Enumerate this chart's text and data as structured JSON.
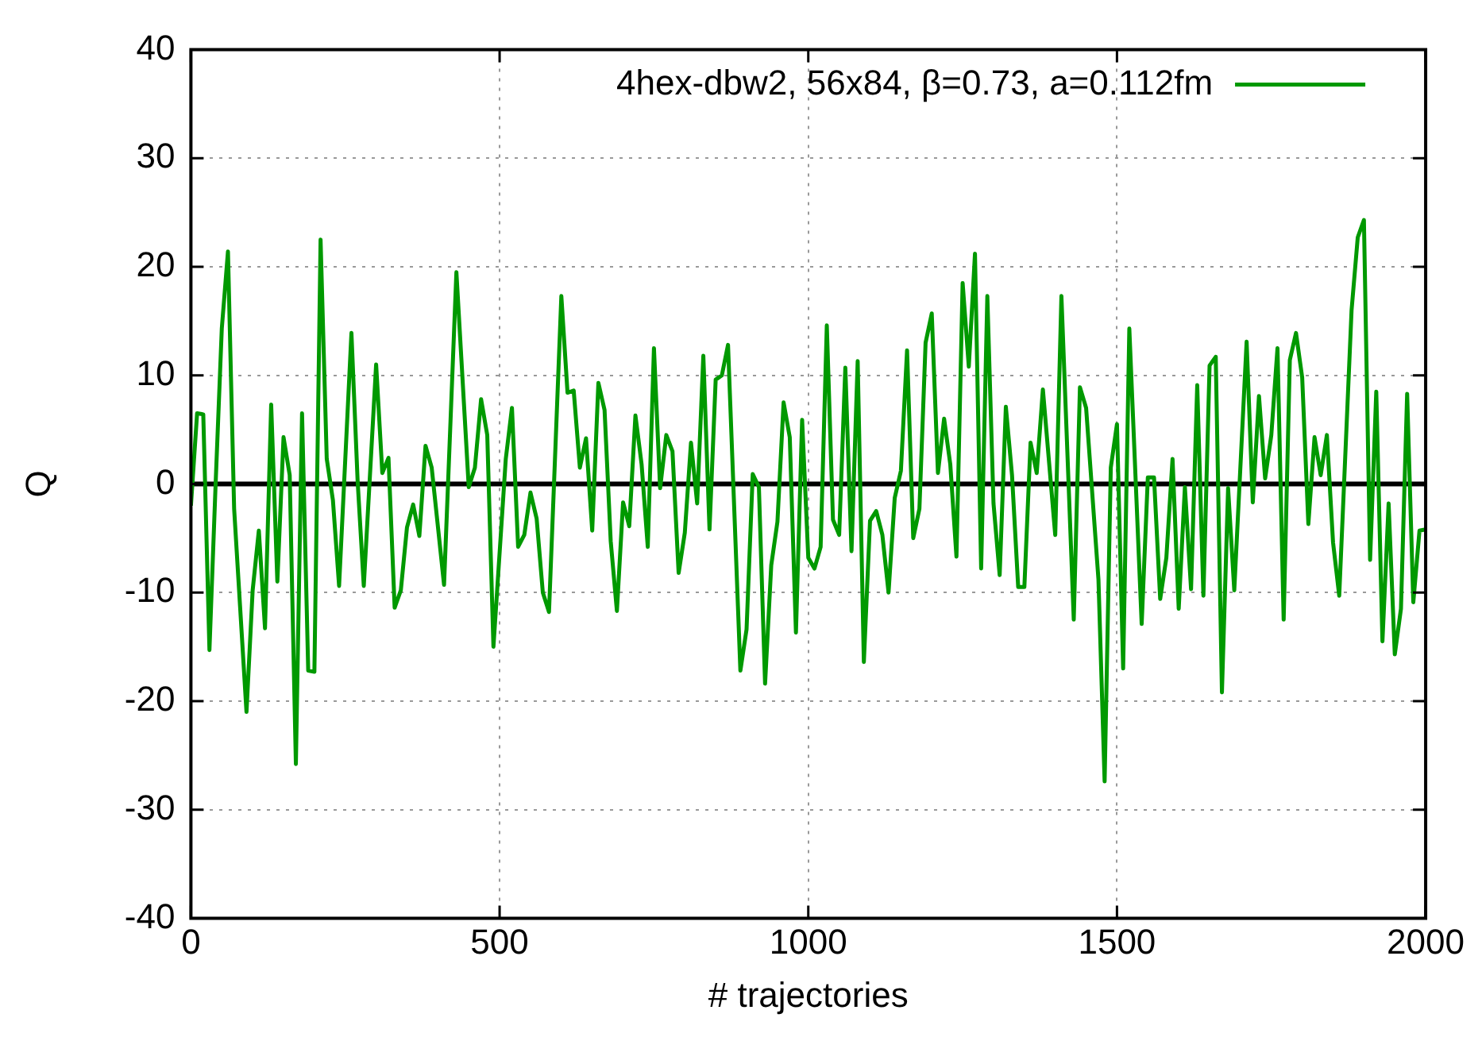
{
  "chart_data": {
    "type": "line",
    "xlabel": "# trajectories",
    "ylabel": "Q",
    "xlim": [
      0,
      2000
    ],
    "xticks": [
      0,
      500,
      1000,
      1500,
      2000
    ],
    "ylim": [
      -40,
      40
    ],
    "yticks": [
      -40,
      -30,
      -20,
      -10,
      0,
      10,
      20,
      30,
      40
    ],
    "grid": true,
    "legend": "top right",
    "marker": "none",
    "line_style": "solid",
    "ref_lines": [
      {
        "axis": "y",
        "value": 0,
        "color": "#000000"
      }
    ],
    "series": [
      {
        "name": "4hex-dbw2, 56x84, β=0.73, a=0.112fm",
        "color": "#009900",
        "x": [
          0,
          10,
          20,
          30,
          40,
          50,
          60,
          70,
          90,
          100,
          110,
          120,
          130,
          140,
          150,
          160,
          170,
          180,
          190,
          200,
          210,
          220,
          230,
          240,
          260,
          270,
          280,
          300,
          310,
          320,
          330,
          340,
          350,
          360,
          370,
          380,
          390,
          410,
          430,
          450,
          460,
          470,
          480,
          490,
          510,
          520,
          530,
          540,
          550,
          560,
          570,
          580,
          600,
          610,
          620,
          630,
          640,
          650,
          660,
          670,
          680,
          690,
          700,
          710,
          720,
          730,
          740,
          750,
          760,
          770,
          780,
          790,
          800,
          810,
          820,
          830,
          840,
          850,
          860,
          870,
          890,
          900,
          910,
          920,
          930,
          940,
          950,
          960,
          970,
          980,
          990,
          1000,
          1010,
          1020,
          1030,
          1040,
          1050,
          1060,
          1070,
          1080,
          1090,
          1100,
          1110,
          1120,
          1130,
          1140,
          1150,
          1160,
          1170,
          1180,
          1190,
          1200,
          1210,
          1220,
          1230,
          1240,
          1250,
          1260,
          1270,
          1280,
          1290,
          1300,
          1310,
          1320,
          1330,
          1340,
          1350,
          1360,
          1370,
          1380,
          1400,
          1410,
          1430,
          1440,
          1450,
          1470,
          1480,
          1490,
          1500,
          1510,
          1520,
          1540,
          1550,
          1560,
          1570,
          1580,
          1590,
          1600,
          1610,
          1620,
          1630,
          1640,
          1650,
          1660,
          1670,
          1680,
          1690,
          1710,
          1720,
          1730,
          1740,
          1750,
          1760,
          1770,
          1780,
          1790,
          1800,
          1810,
          1820,
          1830,
          1840,
          1850,
          1860,
          1880,
          1890,
          1900,
          1910,
          1920,
          1930,
          1940,
          1950,
          1960,
          1970,
          1980,
          1990,
          2000
        ],
        "values": [
          -2,
          6.5,
          6.4,
          -15.3,
          0,
          14.3,
          21.4,
          -2.3,
          -21,
          -9.8,
          -4.3,
          -13.3,
          7.3,
          -9,
          4.3,
          0.8,
          -25.8,
          6.5,
          -17.2,
          -17.3,
          22.5,
          2.3,
          -1.5,
          -9.4,
          13.9,
          0.3,
          -9.4,
          11,
          1,
          2.4,
          -11.4,
          -9.8,
          -4,
          -1.9,
          -4.8,
          3.5,
          1.5,
          -9.3,
          19.5,
          -0.3,
          1.5,
          7.8,
          4.5,
          -15,
          2.3,
          7,
          -5.8,
          -4.7,
          -0.8,
          -3.2,
          -10,
          -11.8,
          17.3,
          8.4,
          8.6,
          1.5,
          4.2,
          -4.3,
          9.3,
          6.8,
          -5.3,
          -11.7,
          -1.7,
          -3.9,
          6.3,
          1.8,
          -5.8,
          12.5,
          -0.4,
          4.5,
          3,
          -8.2,
          -4.5,
          3.8,
          -1.8,
          11.8,
          -4.2,
          9.6,
          10,
          12.8,
          -17.2,
          -13.4,
          0.9,
          -0.3,
          -18.4,
          -7.5,
          -3.5,
          7.5,
          4.3,
          -13.7,
          5.9,
          -6.8,
          -7.8,
          -5.8,
          14.6,
          -3.3,
          -4.7,
          10.7,
          -6.2,
          11.3,
          -16.4,
          -3.4,
          -2.5,
          -4.7,
          -10,
          -1.3,
          1.2,
          12.3,
          -5,
          -2.3,
          13,
          15.7,
          1,
          6,
          1.8,
          -6.7,
          18.5,
          10.8,
          21.2,
          -7.8,
          17.3,
          -1.8,
          -8.4,
          7.1,
          0.8,
          -9.5,
          -9.5,
          3.8,
          1,
          8.7,
          -4.7,
          17.3,
          -12.5,
          8.9,
          7,
          -8.8,
          -27.4,
          1.5,
          5.5,
          -17,
          14.3,
          -12.9,
          0.6,
          0.6,
          -10.6,
          -6.8,
          2.3,
          -11.5,
          -0.3,
          -9.7,
          9.1,
          -10.3,
          10.9,
          11.7,
          -19.2,
          -0.4,
          -9.8,
          13.1,
          -1.7,
          8.1,
          0.5,
          4.5,
          12.5,
          -12.5,
          11.4,
          13.9,
          9.8,
          -3.7,
          4.3,
          0.8,
          4.5,
          -5.4,
          -10.3,
          16,
          22.7,
          24.3,
          -7,
          8.5,
          -14.5,
          -1.8,
          -15.7,
          -11.5,
          8.3,
          -10.9,
          -4.3,
          -4.2
        ]
      }
    ]
  }
}
